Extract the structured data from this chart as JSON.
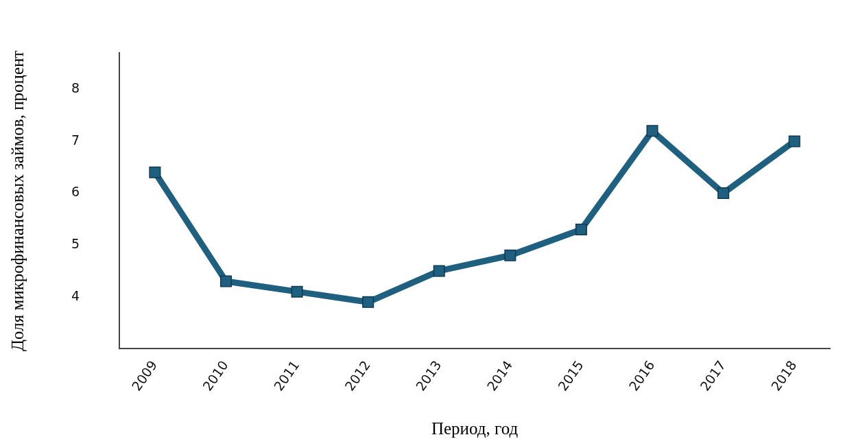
{
  "chart_data": {
    "type": "line",
    "xlabel": "Период, год",
    "ylabel": "Доля микрофинансовых займов, процент",
    "categories": [
      "2009",
      "2010",
      "2011",
      "2012",
      "2013",
      "2014",
      "2015",
      "2016",
      "2017",
      "2018"
    ],
    "series": [
      {
        "color": "#1f5f7f",
        "values": [
          6.4,
          4.3,
          4.1,
          3.9,
          4.5,
          4.8,
          5.3,
          7.2,
          6.0,
          7.0
        ]
      }
    ],
    "ylim": [
      3,
      8.7
    ],
    "yticks": [
      4,
      5,
      6,
      7,
      8
    ],
    "grid": false,
    "legend": false,
    "marker": "square",
    "line_style": "solid"
  }
}
